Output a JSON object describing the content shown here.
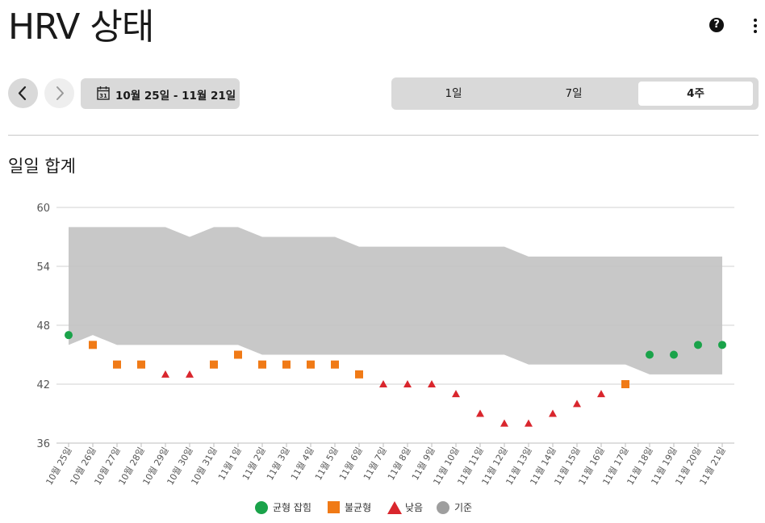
{
  "header": {
    "title": "HRV 상태",
    "help_icon": "?"
  },
  "date_nav": {
    "range_label": "10월 25일 - 11월 21일",
    "calendar_icon_number": "31"
  },
  "range_tabs": [
    {
      "label": "1일",
      "selected": false
    },
    {
      "label": "7일",
      "selected": false
    },
    {
      "label": "4주",
      "selected": true
    }
  ],
  "section": {
    "title": "일일 합계"
  },
  "colors": {
    "balanced": "#1aa34a",
    "unbalanced": "#f07a16",
    "low": "#d9262d",
    "baseline": "#c8c8c8",
    "baseline_legend": "#9e9e9e"
  },
  "chart_data": {
    "type": "scatter",
    "ylim": [
      36,
      60
    ],
    "yticks": [
      "36",
      "42",
      "48",
      "54",
      "60"
    ],
    "categories": [
      "10월 25일",
      "10월 26일",
      "10월 27일",
      "10월 28일",
      "10월 29일",
      "10월 30일",
      "10월 31일",
      "11월 1일",
      "11월 2일",
      "11월 3일",
      "11월 4일",
      "11월 5일",
      "11월 6일",
      "11월 7일",
      "11월 8일",
      "11월 9일",
      "11월 10일",
      "11월 11일",
      "11월 12일",
      "11월 13일",
      "11월 14일",
      "11월 15일",
      "11월 16일",
      "11월 17일",
      "11월 18일",
      "11월 19일",
      "11월 20일",
      "11월 21일"
    ],
    "values": [
      47,
      46,
      44,
      44,
      43,
      43,
      44,
      45,
      44,
      44,
      44,
      44,
      43,
      42,
      42,
      42,
      41,
      39,
      38,
      38,
      39,
      40,
      41,
      42,
      45,
      45,
      46,
      46
    ],
    "status": [
      "balanced",
      "unbalanced",
      "unbalanced",
      "unbalanced",
      "low",
      "low",
      "unbalanced",
      "unbalanced",
      "unbalanced",
      "unbalanced",
      "unbalanced",
      "unbalanced",
      "unbalanced",
      "low",
      "low",
      "low",
      "low",
      "low",
      "low",
      "low",
      "low",
      "low",
      "low",
      "unbalanced",
      "balanced",
      "balanced",
      "balanced",
      "balanced"
    ],
    "baseline_upper": [
      58,
      58,
      58,
      58,
      58,
      57,
      58,
      58,
      57,
      57,
      57,
      57,
      56,
      56,
      56,
      56,
      56,
      56,
      56,
      55,
      55,
      55,
      55,
      55,
      55,
      55,
      55,
      55
    ],
    "baseline_lower": [
      46,
      47,
      46,
      46,
      46,
      46,
      46,
      46,
      45,
      45,
      45,
      45,
      45,
      45,
      45,
      45,
      45,
      45,
      45,
      44,
      44,
      44,
      44,
      44,
      43,
      43,
      43,
      43
    ],
    "legend": [
      {
        "key": "balanced",
        "label": "균형 잡힘",
        "marker": "circle"
      },
      {
        "key": "unbalanced",
        "label": "불균형",
        "marker": "square"
      },
      {
        "key": "low",
        "label": "낮음",
        "marker": "triangle"
      },
      {
        "key": "baseline",
        "label": "기준",
        "marker": "circle-gray"
      }
    ]
  }
}
